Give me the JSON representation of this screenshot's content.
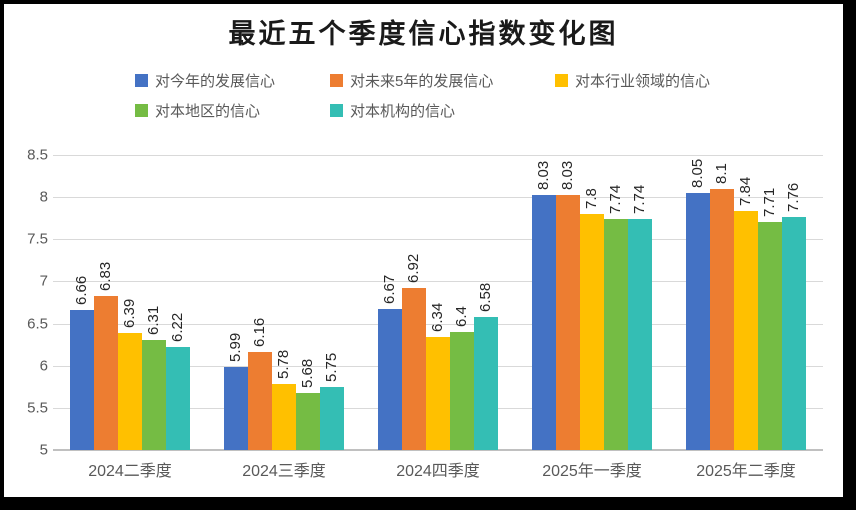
{
  "frame": {
    "border_color": "#000000",
    "background": "#ffffff"
  },
  "chart_data": {
    "type": "bar",
    "title": "最近五个季度信心指数变化图",
    "categories": [
      "2024二季度",
      "2024三季度",
      "2024四季度",
      "2025年一季度",
      "2025年二季度"
    ],
    "series": [
      {
        "name": "对今年的发展信心",
        "color": "#4472C4",
        "values": [
          6.66,
          5.99,
          6.67,
          8.03,
          8.05
        ]
      },
      {
        "name": "对未来5年的发展信心",
        "color": "#ED7D31",
        "values": [
          6.83,
          6.16,
          6.92,
          8.03,
          8.1
        ]
      },
      {
        "name": "对本行业领域的信心",
        "color": "#FFC000",
        "values": [
          6.39,
          5.78,
          6.34,
          7.8,
          7.84
        ]
      },
      {
        "name": "对本地区的信心",
        "color": "#75BC44",
        "values": [
          6.31,
          5.68,
          6.4,
          7.74,
          7.71
        ]
      },
      {
        "name": "对本机构的信心",
        "color": "#34BEB4",
        "values": [
          6.22,
          5.75,
          6.58,
          7.74,
          7.76
        ]
      }
    ],
    "ylim": [
      5,
      8.5
    ],
    "ytick_step": 0.5,
    "yticks": [
      "8.5",
      "8",
      "7.5",
      "7",
      "6.5",
      "6",
      "5.5",
      "5"
    ],
    "grid": true,
    "grid_color": "#d9d9d9",
    "axis_color": "#c0c0c0",
    "value_label_color": "#262626",
    "tick_label_color": "#595959",
    "legend_position": "top",
    "value_labels": "rotated-90"
  }
}
